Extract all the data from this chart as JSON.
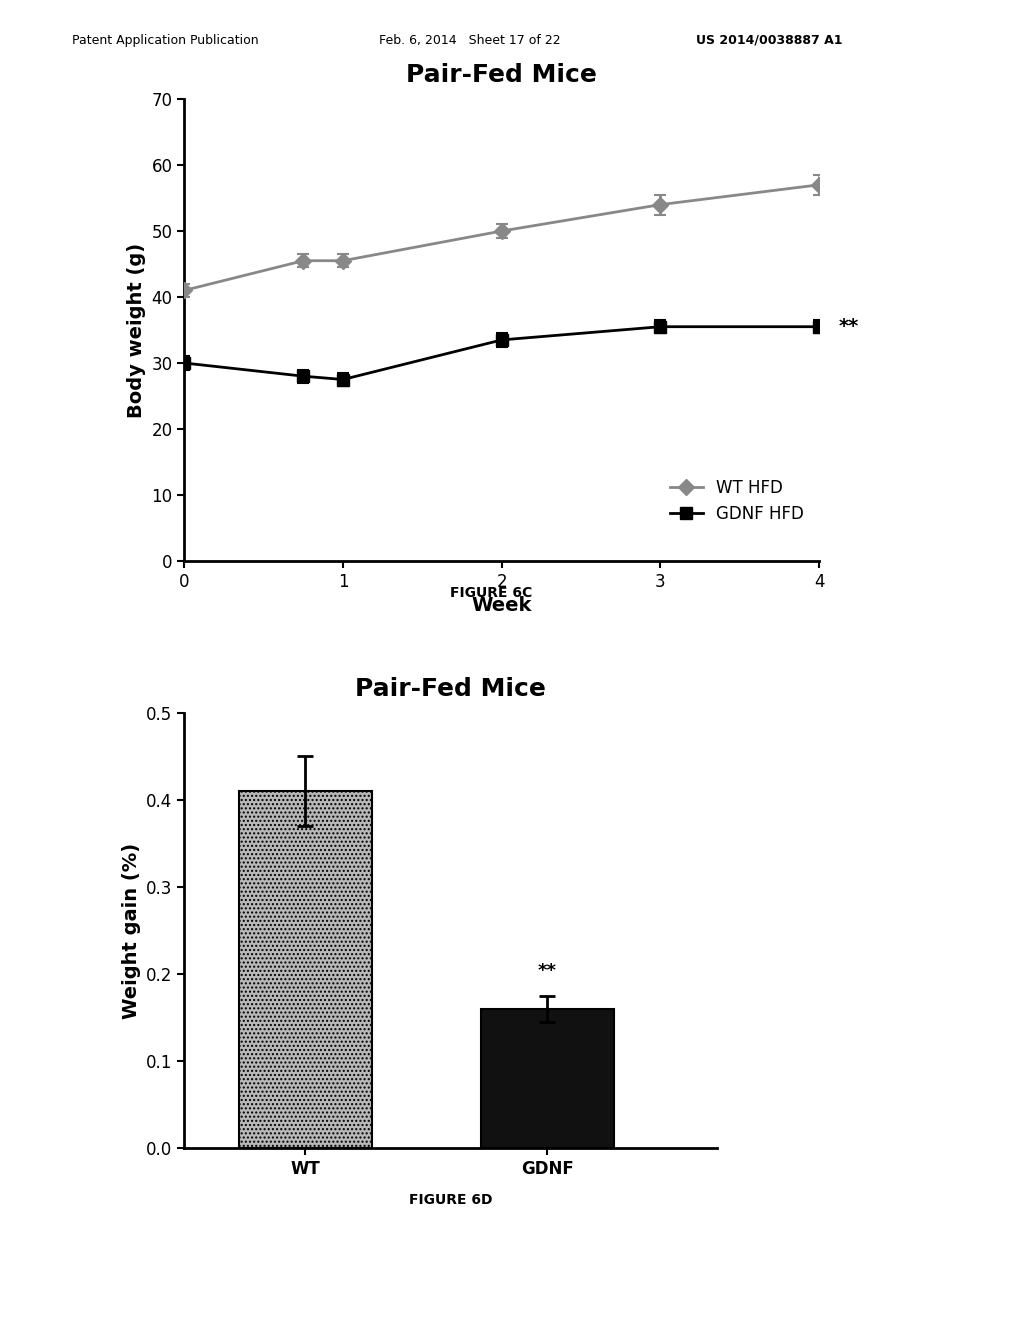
{
  "header_left": "Patent Application Publication",
  "header_mid": "Feb. 6, 2014   Sheet 17 of 22",
  "header_right": "US 2014/0038887 A1",
  "fig6c_title": "Pair-Fed Mice",
  "fig6c_xlabel": "Week",
  "fig6c_ylabel": "Body weight (g)",
  "fig6c_xlim": [
    0,
    4
  ],
  "fig6c_ylim": [
    0,
    70
  ],
  "fig6c_yticks": [
    0,
    10,
    20,
    30,
    40,
    50,
    60,
    70
  ],
  "fig6c_xticks": [
    0,
    1,
    2,
    3,
    4
  ],
  "fig6c_label": "FIGURE 6C",
  "wt_hfd_x": [
    0,
    0.75,
    1.0,
    2.0,
    3.0,
    4.0
  ],
  "wt_hfd_y": [
    41.0,
    45.5,
    45.5,
    50.0,
    54.0,
    57.0
  ],
  "wt_hfd_yerr": [
    1.0,
    1.0,
    1.0,
    1.0,
    1.5,
    1.5
  ],
  "gdnf_hfd_x": [
    0,
    0.75,
    1.0,
    2.0,
    3.0,
    4.0
  ],
  "gdnf_hfd_y": [
    30.0,
    28.0,
    27.5,
    33.5,
    35.5,
    35.5
  ],
  "gdnf_hfd_yerr": [
    1.0,
    1.0,
    1.0,
    1.0,
    1.0,
    1.0
  ],
  "wt_color": "#888888",
  "gdnf_color": "#000000",
  "fig6d_title": "Pair-Fed Mice",
  "fig6d_ylabel": "Weight gain (%)",
  "fig6d_ylim": [
    0.0,
    0.5
  ],
  "fig6d_yticks": [
    0.0,
    0.1,
    0.2,
    0.3,
    0.4,
    0.5
  ],
  "fig6d_label": "FIGURE 6D",
  "bar_categories": [
    "WT",
    "GDNF"
  ],
  "bar_values": [
    0.41,
    0.16
  ],
  "bar_errors": [
    0.04,
    0.015
  ],
  "bar_colors": [
    "#aaaaaa",
    "#111111"
  ]
}
